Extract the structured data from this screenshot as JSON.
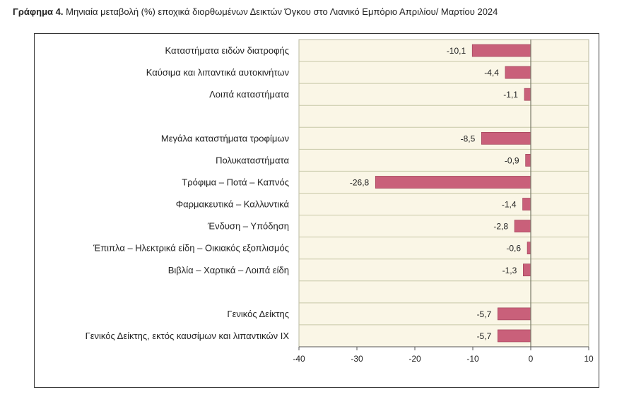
{
  "title": {
    "prefix": "Γράφημα 4.",
    "text": "Μηνιαία μεταβολή (%) εποχικά διορθωμένων Δεικτών Όγκου στο Λιανικό Εμπόριο Απριλίου/ Μαρτίου 2024"
  },
  "colors": {
    "bar_fill": "#c9607a",
    "bar_edge": "#9a3a52",
    "plot_bg": "#faf6e6",
    "grid": "#c8c8a8"
  },
  "chart_data": {
    "type": "bar",
    "orientation": "horizontal",
    "title": "Μηνιαία μεταβολή (%) εποχικά διορθωμένων Δεικτών Όγκου στο Λιανικό Εμπόριο Απριλίου/ Μαρτίου 2024",
    "categories": [
      "Καταστήματα ειδών διατροφής",
      "Καύσιμα και λιπαντικά αυτοκινήτων",
      "Λοιπά καταστήματα",
      "",
      "Μεγάλα καταστήματα τροφίμων",
      "Πολυκαταστήματα",
      "Τρόφιμα – Ποτά – Καπνός",
      "Φαρμακευτικά – Καλλυντικά",
      "Ένδυση – Υπόδηση",
      "Έπιπλα – Ηλεκτρικά είδη – Οικιακός εξοπλισμός",
      "Βιβλία – Χαρτικά – Λοιπά είδη",
      "",
      "Γενικός Δείκτης",
      "Γενικός Δείκτης, εκτός καυσίμων και λιπαντικών ΙΧ"
    ],
    "values": [
      -10.1,
      -4.4,
      -1.1,
      null,
      -8.5,
      -0.9,
      -26.8,
      -1.4,
      -2.8,
      -0.6,
      -1.3,
      null,
      -5.7,
      -5.7
    ],
    "value_labels": [
      "-10,1",
      "-4,4",
      "-1,1",
      "",
      "-8,5",
      "-0,9",
      "-26,8",
      "-1,4",
      "-2,8",
      "-0,6",
      "-1,3",
      "",
      "-5,7",
      "-5,7"
    ],
    "xlim": [
      -40,
      10
    ],
    "xticks": [
      -40,
      -30,
      -20,
      -10,
      0,
      10
    ],
    "xtick_labels": [
      "-40",
      "-30",
      "-20",
      "-10",
      "0",
      "10"
    ],
    "xlabel": "",
    "ylabel": "",
    "grid": "horizontal lines between categories",
    "legend": "none"
  }
}
